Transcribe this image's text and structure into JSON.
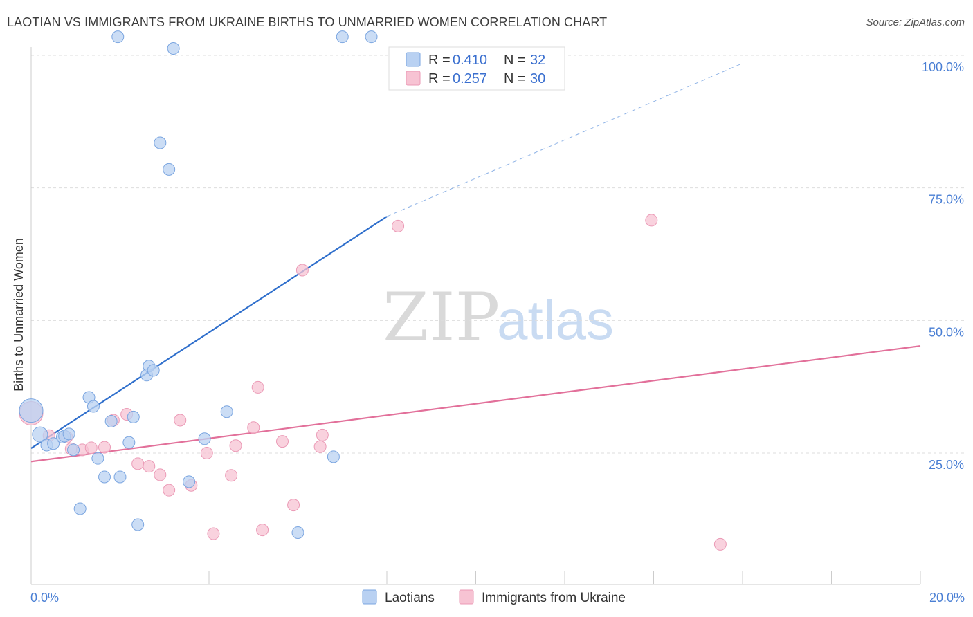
{
  "header": {
    "title": "LAOTIAN VS IMMIGRANTS FROM UKRAINE BIRTHS TO UNMARRIED WOMEN CORRELATION CHART",
    "source": "Source: ZipAtlas.com"
  },
  "watermark": {
    "zip": "ZIP",
    "atlas": "atlas"
  },
  "colors": {
    "blue": "#5b8fd6",
    "blue_fill": "#b9d1f2",
    "pink": "#e2709a",
    "pink_fill": "#f7c3d3",
    "grid": "#dddddd"
  },
  "legend": {
    "series1": {
      "r_label": "R =",
      "r_value": "0.410",
      "n_label": "N =",
      "n_value": "32"
    },
    "series2": {
      "r_label": "R =",
      "r_value": "0.257",
      "n_label": "N =",
      "n_value": "30"
    }
  },
  "bottom_legend": {
    "series1": "Laotians",
    "series2": "Immigrants from Ukraine"
  },
  "chart_data": {
    "type": "scatter",
    "title": "LAOTIAN VS IMMIGRANTS FROM UKRAINE BIRTHS TO UNMARRIED WOMEN CORRELATION CHART",
    "xlabel": "",
    "ylabel": "Births to Unmarried Women",
    "xlim": [
      0,
      20
    ],
    "ylim": [
      0,
      105
    ],
    "x_tick_labels": [
      "0.0%",
      "20.0%"
    ],
    "y_ticks": [
      25,
      50,
      75,
      100
    ],
    "y_tick_labels": [
      "25.0%",
      "50.0%",
      "75.0%",
      "100.0%"
    ],
    "series": [
      {
        "name": "Laotians",
        "R": 0.41,
        "N": 32,
        "trend": {
          "x0": 0,
          "y0": 25.9,
          "x1": 8.0,
          "y1": 69.6,
          "dashed_to_x": 16.0,
          "dashed_to_y": 98.5
        },
        "points": [
          {
            "x": 0.0,
            "y": 33.0,
            "s": 3
          },
          {
            "x": 0.2,
            "y": 28.5,
            "s": 2
          },
          {
            "x": 0.35,
            "y": 26.5,
            "s": 1
          },
          {
            "x": 0.5,
            "y": 26.8,
            "s": 1
          },
          {
            "x": 0.7,
            "y": 28.0,
            "s": 1
          },
          {
            "x": 0.75,
            "y": 28.2,
            "s": 1
          },
          {
            "x": 0.85,
            "y": 28.6,
            "s": 1
          },
          {
            "x": 0.95,
            "y": 25.6,
            "s": 1
          },
          {
            "x": 1.1,
            "y": 14.5,
            "s": 1
          },
          {
            "x": 1.3,
            "y": 35.5,
            "s": 1
          },
          {
            "x": 1.4,
            "y": 33.8,
            "s": 1
          },
          {
            "x": 1.5,
            "y": 24.0,
            "s": 1
          },
          {
            "x": 1.65,
            "y": 20.5,
            "s": 1
          },
          {
            "x": 1.8,
            "y": 31.0,
            "s": 1
          },
          {
            "x": 2.0,
            "y": 20.5,
            "s": 1
          },
          {
            "x": 2.2,
            "y": 27.0,
            "s": 1
          },
          {
            "x": 2.3,
            "y": 31.8,
            "s": 1
          },
          {
            "x": 2.4,
            "y": 11.5,
            "s": 1
          },
          {
            "x": 2.6,
            "y": 39.7,
            "s": 1
          },
          {
            "x": 2.65,
            "y": 41.4,
            "s": 1
          },
          {
            "x": 2.75,
            "y": 40.6,
            "s": 1
          },
          {
            "x": 2.9,
            "y": 83.5,
            "s": 1
          },
          {
            "x": 3.1,
            "y": 78.5,
            "s": 1
          },
          {
            "x": 3.2,
            "y": 101.3,
            "s": 1
          },
          {
            "x": 3.55,
            "y": 19.6,
            "s": 1
          },
          {
            "x": 3.9,
            "y": 27.7,
            "s": 1
          },
          {
            "x": 4.4,
            "y": 32.8,
            "s": 1
          },
          {
            "x": 6.0,
            "y": 10.0,
            "s": 1
          },
          {
            "x": 6.8,
            "y": 24.3,
            "s": 1
          },
          {
            "x": 1.95,
            "y": 103.5,
            "s": 1
          },
          {
            "x": 7.0,
            "y": 103.5,
            "s": 1
          },
          {
            "x": 7.65,
            "y": 103.5,
            "s": 1
          }
        ]
      },
      {
        "name": "Immigrants from Ukraine",
        "R": 0.257,
        "N": 30,
        "trend": {
          "x0": 0,
          "y0": 23.4,
          "x1": 20,
          "y1": 45.2
        },
        "points": [
          {
            "x": 0.0,
            "y": 32.5,
            "s": 3
          },
          {
            "x": 0.4,
            "y": 28.3,
            "s": 1
          },
          {
            "x": 0.8,
            "y": 28.0,
            "s": 1
          },
          {
            "x": 0.9,
            "y": 25.8,
            "s": 1
          },
          {
            "x": 1.15,
            "y": 25.6,
            "s": 1
          },
          {
            "x": 1.35,
            "y": 26.0,
            "s": 1
          },
          {
            "x": 1.65,
            "y": 26.1,
            "s": 1
          },
          {
            "x": 1.85,
            "y": 31.2,
            "s": 1
          },
          {
            "x": 2.15,
            "y": 32.3,
            "s": 1
          },
          {
            "x": 2.4,
            "y": 23.0,
            "s": 1
          },
          {
            "x": 2.65,
            "y": 22.5,
            "s": 1
          },
          {
            "x": 2.9,
            "y": 20.9,
            "s": 1
          },
          {
            "x": 3.1,
            "y": 18.0,
            "s": 1
          },
          {
            "x": 3.35,
            "y": 31.2,
            "s": 1
          },
          {
            "x": 3.6,
            "y": 18.9,
            "s": 1
          },
          {
            "x": 3.95,
            "y": 25.0,
            "s": 1
          },
          {
            "x": 4.1,
            "y": 9.8,
            "s": 1
          },
          {
            "x": 4.5,
            "y": 20.8,
            "s": 1
          },
          {
            "x": 4.6,
            "y": 26.4,
            "s": 1
          },
          {
            "x": 5.0,
            "y": 29.8,
            "s": 1
          },
          {
            "x": 5.1,
            "y": 37.4,
            "s": 1
          },
          {
            "x": 5.2,
            "y": 10.5,
            "s": 1
          },
          {
            "x": 5.65,
            "y": 27.2,
            "s": 1
          },
          {
            "x": 5.9,
            "y": 15.2,
            "s": 1
          },
          {
            "x": 6.1,
            "y": 59.5,
            "s": 1
          },
          {
            "x": 6.5,
            "y": 26.2,
            "s": 1
          },
          {
            "x": 6.55,
            "y": 28.4,
            "s": 1
          },
          {
            "x": 8.25,
            "y": 67.8,
            "s": 1
          },
          {
            "x": 13.95,
            "y": 68.9,
            "s": 1
          },
          {
            "x": 15.5,
            "y": 7.8,
            "s": 1
          }
        ]
      }
    ]
  }
}
